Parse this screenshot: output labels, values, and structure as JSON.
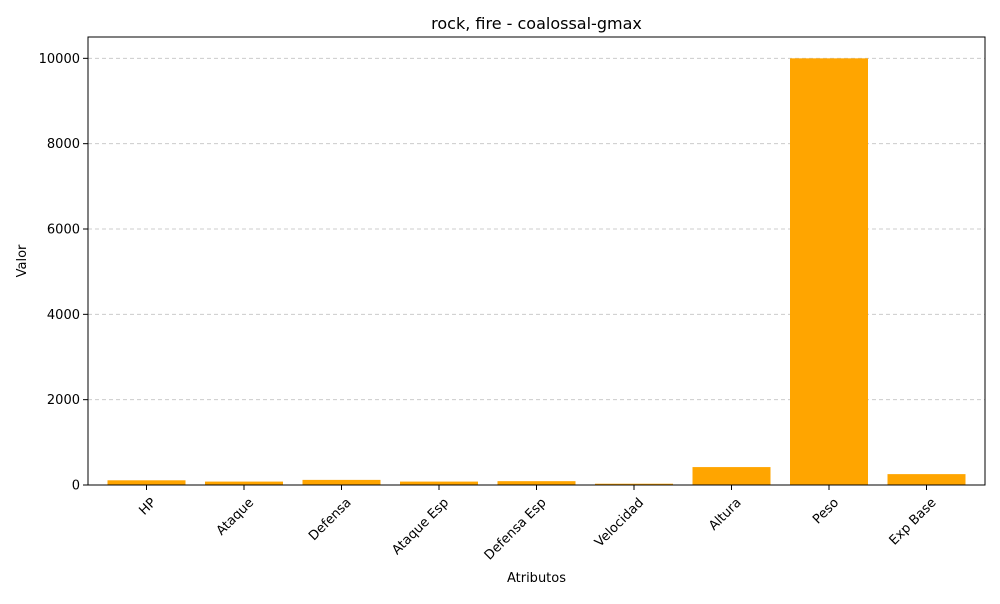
{
  "chart_data": {
    "type": "bar",
    "title": "rock, fire - coalossal-gmax",
    "xlabel": "Atributos",
    "ylabel": "Valor",
    "categories": [
      "HP",
      "Ataque",
      "Defensa",
      "Ataque Esp",
      "Defensa Esp",
      "Velocidad",
      "Altura",
      "Peso",
      "Exp Base"
    ],
    "values": [
      110,
      80,
      120,
      80,
      90,
      30,
      420,
      10000,
      255
    ],
    "yticks": [
      0,
      2000,
      4000,
      6000,
      8000,
      10000
    ],
    "ylim": [
      0,
      10500
    ],
    "grid": "y-dashed",
    "bar_color": "#FFA500",
    "x_tick_rotation": 45
  }
}
